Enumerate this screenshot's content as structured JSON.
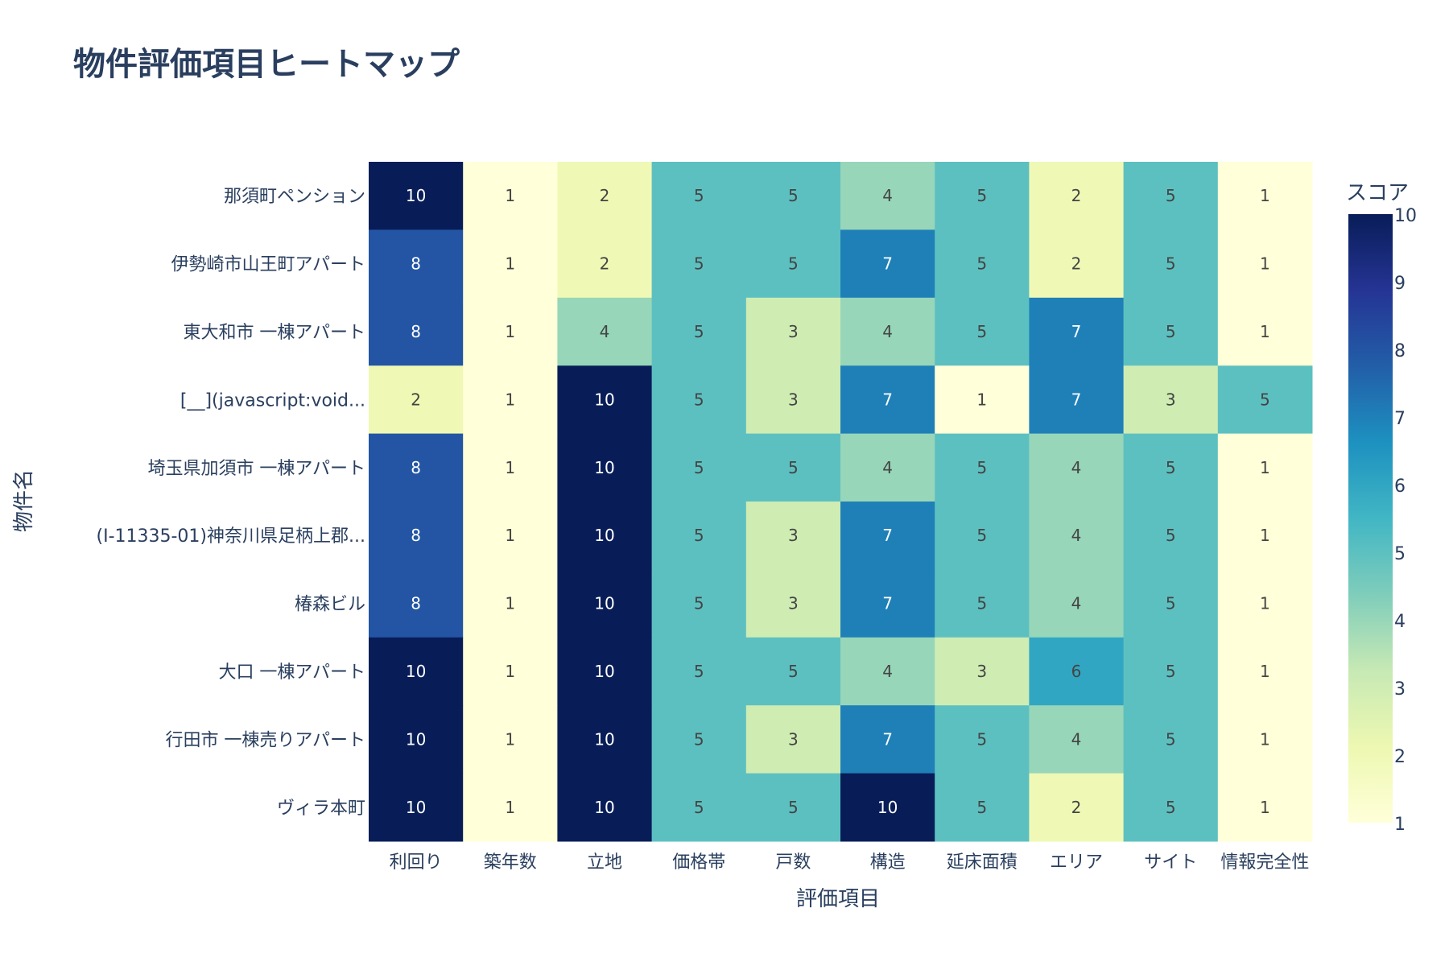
{
  "chart_data": {
    "type": "heatmap",
    "title": "物件評価項目ヒートマップ",
    "xlabel": "評価項目",
    "ylabel": "物件名",
    "colorbar_title": "スコア",
    "zlim": [
      1,
      10
    ],
    "colorbar_ticks": [
      1,
      2,
      3,
      4,
      5,
      6,
      7,
      8,
      9,
      10
    ],
    "x_categories": [
      "利回り",
      "築年数",
      "立地",
      "価格帯",
      "戸数",
      "構造",
      "延床面積",
      "エリア",
      "サイト",
      "情報完全性"
    ],
    "y_categories": [
      "那須町ペンション",
      "伊勢崎市山王町アパート",
      "東大和市 一棟アパート",
      "[__](javascript:void...",
      "埼玉県加須市 一棟アパート",
      "(I-11335-01)神奈川県足柄上郡...",
      "椿森ビル",
      "大口 一棟アパート",
      "行田市 一棟売りアパート",
      "ヴィラ本町"
    ],
    "z": [
      [
        10,
        1,
        2,
        5,
        5,
        4,
        5,
        2,
        5,
        1
      ],
      [
        8,
        1,
        2,
        5,
        5,
        7,
        5,
        2,
        5,
        1
      ],
      [
        8,
        1,
        4,
        5,
        3,
        4,
        5,
        7,
        5,
        1
      ],
      [
        2,
        1,
        10,
        5,
        3,
        7,
        1,
        7,
        3,
        5
      ],
      [
        8,
        1,
        10,
        5,
        5,
        4,
        5,
        4,
        5,
        1
      ],
      [
        8,
        1,
        10,
        5,
        3,
        7,
        5,
        4,
        5,
        1
      ],
      [
        8,
        1,
        10,
        5,
        3,
        7,
        5,
        4,
        5,
        1
      ],
      [
        10,
        1,
        10,
        5,
        5,
        4,
        3,
        6,
        5,
        1
      ],
      [
        10,
        1,
        10,
        5,
        3,
        7,
        5,
        4,
        5,
        1
      ],
      [
        10,
        1,
        10,
        5,
        5,
        10,
        5,
        2,
        5,
        1
      ]
    ],
    "colorscale": [
      "#ffffd9",
      "#edf8b1",
      "#c7e9b4",
      "#7fcdbb",
      "#41b6c4",
      "#1d91c0",
      "#225ea8",
      "#253494",
      "#081d58"
    ]
  }
}
